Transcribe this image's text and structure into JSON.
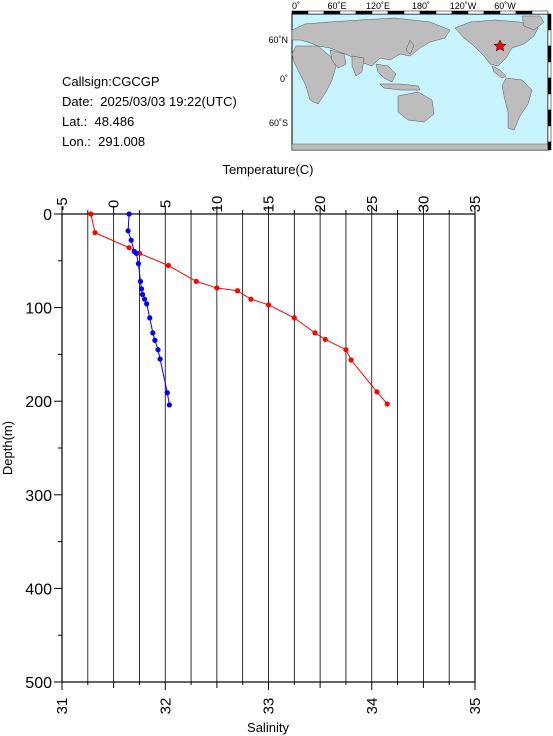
{
  "info": {
    "callsign": "Callsign:CGCGP",
    "date": "Date:  2025/03/03 19:22(UTC)",
    "lat": "Lat.:  48.486",
    "lon": "Lon.:  291.008"
  },
  "map": {
    "top_lon_labels": [
      "0˚",
      "60˚E",
      "120˚E",
      "180˚",
      "120˚W",
      "60˚W"
    ],
    "left_lat_labels": [
      "60˚N",
      "0˚",
      "60˚S"
    ],
    "marker_color": "#ff0000",
    "ocean_color": "#c8f4ff",
    "land_color": "#bdbdbd"
  },
  "chart_data": {
    "type": "line",
    "ylabel": "Depth(m)",
    "ylim": [
      500,
      0
    ],
    "yticks": [
      0,
      100,
      200,
      300,
      400,
      500
    ],
    "top_axis": {
      "label": "Temperature(C)",
      "lim": [
        -5,
        35
      ],
      "ticks": [
        -5,
        0,
        5,
        10,
        15,
        20,
        25,
        30,
        35
      ]
    },
    "bottom_axis": {
      "label": "Salinity",
      "lim": [
        31,
        35
      ],
      "ticks": [
        31,
        32,
        33,
        34,
        35
      ]
    },
    "grid": true,
    "series": [
      {
        "axis": "temperature",
        "color": "#ff0000",
        "points": [
          [
            -2.2,
            0
          ],
          [
            -1.8,
            20
          ],
          [
            1.5,
            36
          ],
          [
            2.5,
            42
          ],
          [
            5.3,
            55
          ],
          [
            8.0,
            72
          ],
          [
            10.0,
            79
          ],
          [
            12.0,
            82
          ],
          [
            13.3,
            91
          ],
          [
            15.0,
            97
          ],
          [
            17.5,
            111
          ],
          [
            19.5,
            127
          ],
          [
            20.5,
            134
          ],
          [
            22.5,
            145
          ],
          [
            23.0,
            156
          ],
          [
            25.5,
            190
          ],
          [
            26.5,
            203
          ]
        ]
      },
      {
        "axis": "salinity",
        "color": "#0000ff",
        "points": [
          [
            31.65,
            0
          ],
          [
            31.64,
            18
          ],
          [
            31.67,
            28
          ],
          [
            31.7,
            40
          ],
          [
            31.72,
            42
          ],
          [
            31.74,
            53
          ],
          [
            31.76,
            72
          ],
          [
            31.77,
            80
          ],
          [
            31.78,
            86
          ],
          [
            31.8,
            91
          ],
          [
            31.82,
            96
          ],
          [
            31.85,
            111
          ],
          [
            31.88,
            127
          ],
          [
            31.9,
            135
          ],
          [
            31.93,
            145
          ],
          [
            31.95,
            155
          ],
          [
            32.02,
            191
          ],
          [
            32.04,
            204
          ]
        ]
      }
    ]
  }
}
